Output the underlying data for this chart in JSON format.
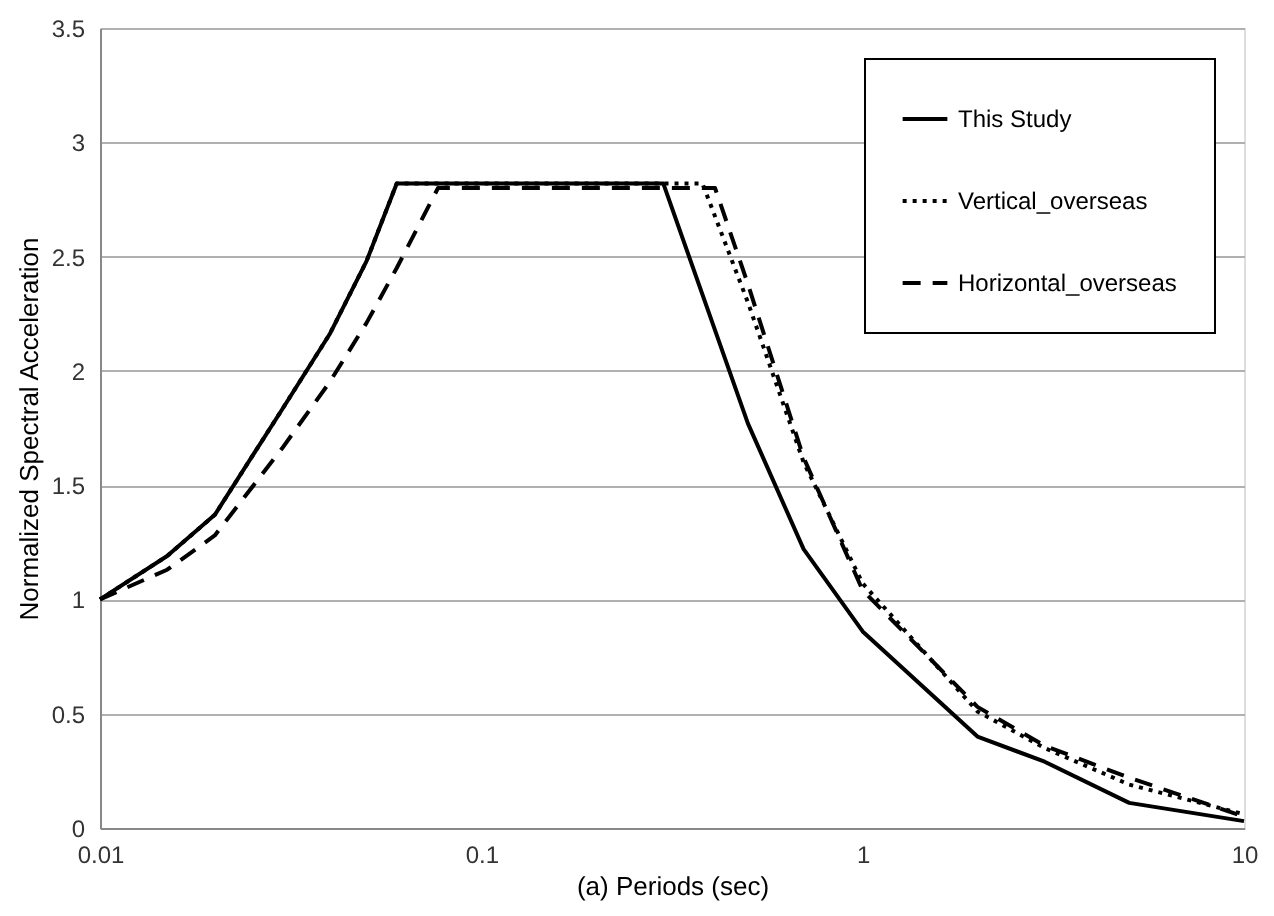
{
  "chart_data": {
    "type": "line",
    "xlabel": "(a) Periods (sec)",
    "ylabel": "Normalized Spectral Acceleration",
    "log": "x",
    "xlim": [
      0.01,
      10
    ],
    "xticks": [
      0.01,
      0.1,
      1,
      10
    ],
    "ylim": [
      0,
      3.5
    ],
    "yticks": [
      0,
      0.5,
      1,
      1.5,
      2,
      2.5,
      3,
      3.5
    ],
    "grid": "y",
    "legend": "top right",
    "series": [
      {
        "name": "This Study",
        "color": "#000000",
        "line_style": "solid",
        "x": [
          0.01,
          0.015,
          0.02,
          0.03,
          0.04,
          0.05,
          0.06,
          0.3,
          0.5,
          0.7,
          1,
          2,
          3,
          5,
          10
        ],
        "values": [
          1.0,
          1.19,
          1.37,
          1.83,
          2.16,
          2.48,
          2.82,
          2.82,
          1.77,
          1.22,
          0.86,
          0.4,
          0.29,
          0.11,
          0.03
        ]
      },
      {
        "name": "Vertical_overseas",
        "color": "#000000",
        "line_style": "dotted",
        "x": [
          0.01,
          0.015,
          0.02,
          0.03,
          0.04,
          0.05,
          0.06,
          0.38,
          0.5,
          0.7,
          1,
          2,
          3,
          5,
          10
        ],
        "values": [
          1.0,
          1.19,
          1.37,
          1.83,
          2.16,
          2.48,
          2.82,
          2.82,
          2.3,
          1.6,
          1.07,
          0.51,
          0.35,
          0.19,
          0.06
        ]
      },
      {
        "name": "Horizontal_overseas",
        "color": "#000000",
        "line_style": "dashed",
        "x": [
          0.01,
          0.015,
          0.02,
          0.03,
          0.04,
          0.05,
          0.06,
          0.077,
          0.41,
          0.5,
          0.7,
          1,
          2,
          3,
          5,
          10
        ],
        "values": [
          1.0,
          1.13,
          1.28,
          1.66,
          1.95,
          2.21,
          2.45,
          2.8,
          2.8,
          2.38,
          1.62,
          1.04,
          0.53,
          0.36,
          0.22,
          0.05
        ]
      }
    ]
  }
}
